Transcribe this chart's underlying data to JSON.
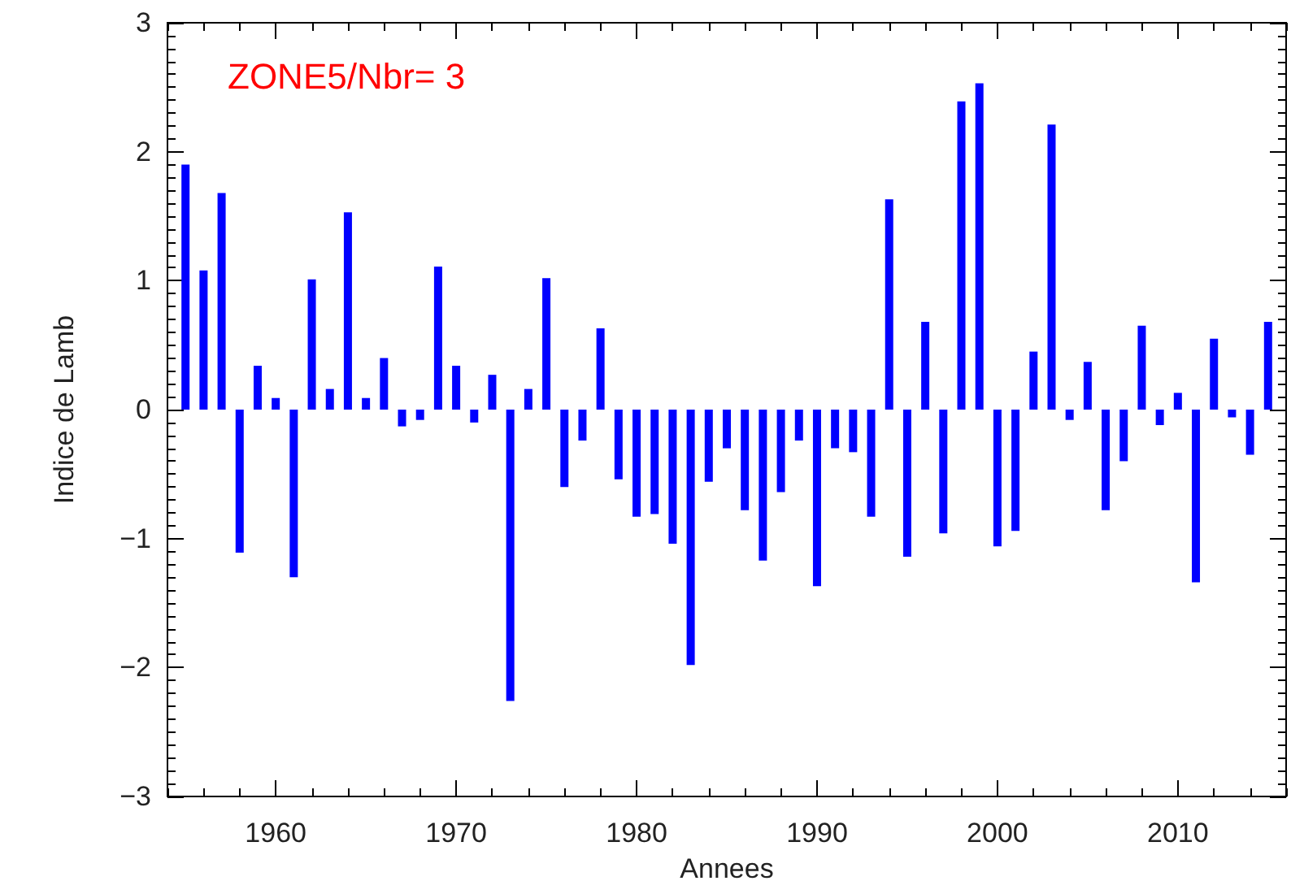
{
  "chart_data": {
    "type": "bar",
    "title": "ZONE5/Nbr= 3",
    "xlabel": "Annees",
    "ylabel": "Indice de Lamb",
    "x": [
      1955,
      1956,
      1957,
      1958,
      1959,
      1960,
      1961,
      1962,
      1963,
      1964,
      1965,
      1966,
      1967,
      1968,
      1969,
      1970,
      1971,
      1972,
      1973,
      1974,
      1975,
      1976,
      1977,
      1978,
      1979,
      1980,
      1981,
      1982,
      1983,
      1984,
      1985,
      1986,
      1987,
      1988,
      1989,
      1990,
      1991,
      1992,
      1993,
      1994,
      1995,
      1996,
      1997,
      1998,
      1999,
      2000,
      2001,
      2002,
      2003,
      2004,
      2005,
      2006,
      2007,
      2008,
      2009,
      2010,
      2011,
      2012,
      2013,
      2014,
      2015
    ],
    "values": [
      1.9,
      1.08,
      1.68,
      -1.11,
      0.34,
      0.09,
      -1.3,
      1.01,
      0.16,
      1.53,
      0.09,
      0.4,
      -0.13,
      -0.08,
      1.11,
      0.34,
      -0.1,
      0.27,
      -2.26,
      0.16,
      1.02,
      -0.6,
      -0.24,
      0.63,
      -0.54,
      -0.83,
      -0.81,
      -1.04,
      -1.98,
      -0.56,
      -0.3,
      -0.78,
      -1.17,
      -0.64,
      -0.24,
      -1.37,
      -0.3,
      -0.33,
      -0.83,
      1.63,
      -1.14,
      0.68,
      -0.96,
      2.39,
      2.53,
      -1.06,
      -0.94,
      0.45,
      2.21,
      -0.08,
      0.37,
      -0.78,
      -0.4,
      0.65,
      -0.12,
      0.13,
      -1.34,
      0.55,
      -0.06,
      -0.35,
      0.68
    ],
    "color": "#0000ff",
    "xlim": [
      1954,
      2016
    ],
    "xticks": [
      1960,
      1970,
      1980,
      1990,
      2000,
      2010
    ],
    "ylim": [
      -3,
      3
    ],
    "yticks": [
      -3,
      -2,
      -1,
      0,
      1,
      2,
      3
    ],
    "grid": false
  }
}
